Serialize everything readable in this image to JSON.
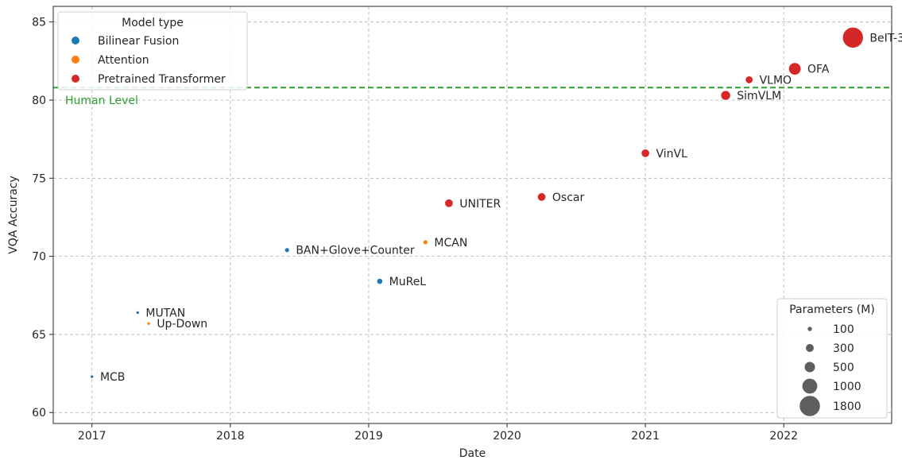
{
  "chart_data": {
    "type": "scatter",
    "title": "",
    "xlabel": "Date",
    "ylabel": "VQA Accuracy",
    "xlim": [
      2016.72,
      2022.78
    ],
    "ylim": [
      59.3,
      86.0
    ],
    "x_ticks": [
      2017,
      2018,
      2019,
      2020,
      2021,
      2022
    ],
    "y_ticks": [
      60,
      65,
      70,
      75,
      80,
      85
    ],
    "grid": true,
    "grid_style": "dashed",
    "colors": {
      "Bilinear Fusion": "#1f77b4",
      "Attention": "#ff7f0e",
      "Pretrained Transformer": "#d62728",
      "human_level": "#2ca02c"
    },
    "reference_line": {
      "y": 80.8,
      "label": "Human Level",
      "style": "dashed",
      "color": "#2ca02c"
    },
    "hue_legend": {
      "title": "Model type",
      "position": "top-left",
      "entries": [
        "Bilinear Fusion",
        "Attention",
        "Pretrained Transformer"
      ]
    },
    "size_legend": {
      "title": "Parameters (M)",
      "position": "bottom-right",
      "entries": [
        100,
        300,
        500,
        1000,
        1800
      ]
    },
    "points": [
      {
        "label": "MCB",
        "x": 2017.0,
        "y": 62.3,
        "type": "Bilinear Fusion",
        "params": 50
      },
      {
        "label": "MUTAN",
        "x": 2017.33,
        "y": 66.4,
        "type": "Bilinear Fusion",
        "params": 50
      },
      {
        "label": "Up-Down",
        "x": 2017.41,
        "y": 65.7,
        "type": "Attention",
        "params": 50
      },
      {
        "label": "BAN+Glove+Counter",
        "x": 2018.41,
        "y": 70.4,
        "type": "Bilinear Fusion",
        "params": 100
      },
      {
        "label": "MuReL",
        "x": 2019.08,
        "y": 68.4,
        "type": "Bilinear Fusion",
        "params": 150
      },
      {
        "label": "MCAN",
        "x": 2019.41,
        "y": 70.9,
        "type": "Attention",
        "params": 100
      },
      {
        "label": "UNITER",
        "x": 2019.58,
        "y": 73.4,
        "type": "Pretrained Transformer",
        "params": 300
      },
      {
        "label": "Oscar",
        "x": 2020.25,
        "y": 73.8,
        "type": "Pretrained Transformer",
        "params": 300
      },
      {
        "label": "VinVL",
        "x": 2021.0,
        "y": 76.6,
        "type": "Pretrained Transformer",
        "params": 300
      },
      {
        "label": "SimVLM",
        "x": 2021.58,
        "y": 80.3,
        "type": "Pretrained Transformer",
        "params": 400
      },
      {
        "label": "VLMO",
        "x": 2021.75,
        "y": 81.3,
        "type": "Pretrained Transformer",
        "params": 250
      },
      {
        "label": "OFA",
        "x": 2022.08,
        "y": 82.0,
        "type": "Pretrained Transformer",
        "params": 650
      },
      {
        "label": "BeIT-3",
        "x": 2022.5,
        "y": 84.0,
        "type": "Pretrained Transformer",
        "params": 1800
      }
    ]
  }
}
